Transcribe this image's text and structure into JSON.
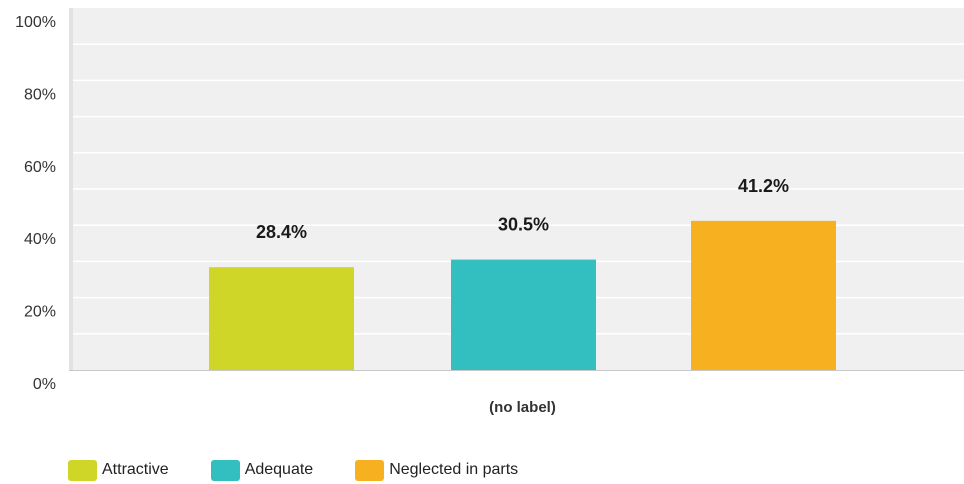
{
  "chart_data": {
    "type": "bar",
    "categories": [
      "Attractive",
      "Adequate",
      "Neglected in parts"
    ],
    "values": [
      28.4,
      30.5,
      41.2
    ],
    "data_labels": [
      "28.4%",
      "30.5%",
      "41.2%"
    ],
    "colors": [
      "#cfd628",
      "#33bfc0",
      "#f7b120"
    ],
    "xlabel": "(no label)",
    "ylabel": "",
    "ylim": [
      0,
      100
    ],
    "yticks": [
      0,
      20,
      40,
      60,
      80,
      100
    ],
    "ytick_labels": [
      "0%",
      "20%",
      "40%",
      "60%",
      "80%",
      "100%"
    ],
    "grid": true,
    "legend_position": "bottom-left",
    "plot_background": "#f0f0f0"
  },
  "legend": {
    "items": [
      {
        "label": "Attractive",
        "color": "#cfd628"
      },
      {
        "label": "Adequate",
        "color": "#33bfc0"
      },
      {
        "label": "Neglected in parts",
        "color": "#f7b120"
      }
    ]
  }
}
